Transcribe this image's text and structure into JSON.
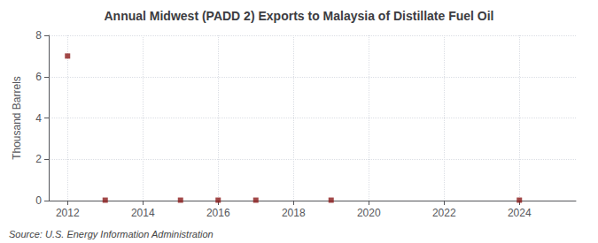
{
  "chart_data": {
    "type": "scatter",
    "title": "Annual Midwest (PADD 2) Exports to Malaysia of Distillate Fuel Oil",
    "ylabel": "Thousand Barrels",
    "annotation": "Source: U.S. Energy Information Administration",
    "x": [
      2012,
      2013,
      2015,
      2016,
      2017,
      2019,
      2024
    ],
    "values": [
      7,
      0.02,
      0.02,
      0.02,
      0.02,
      0.02,
      0.02
    ],
    "color": "#8b1a1a",
    "marker": "square",
    "xlim": [
      2011.5,
      2025.5
    ],
    "xticks": [
      2012,
      2014,
      2016,
      2018,
      2020,
      2022,
      2024
    ],
    "ylim": [
      0,
      8
    ],
    "yticks": [
      0,
      2,
      4,
      6,
      8
    ],
    "grid": true
  }
}
